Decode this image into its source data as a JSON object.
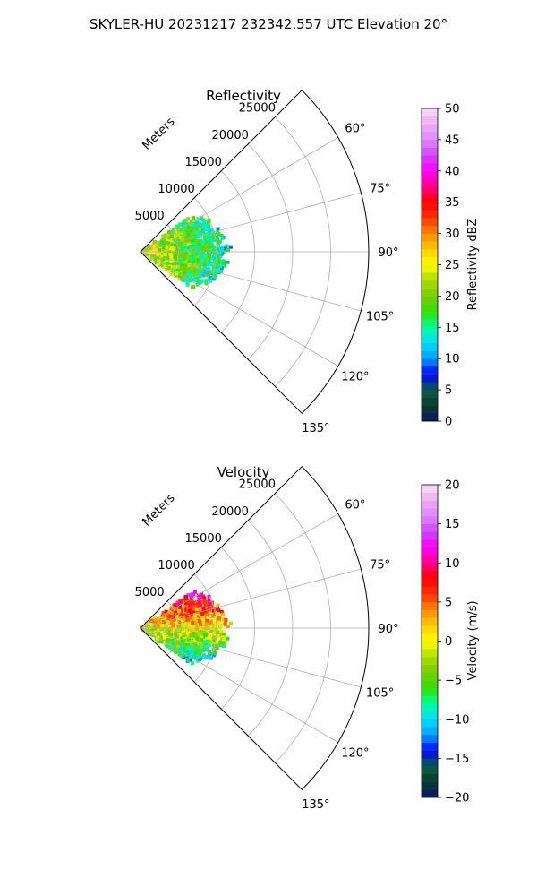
{
  "figure": {
    "suptitle": "SKYLER-HU  20231217  232342.557 UTC Elevation 20°"
  },
  "chart_data": [
    {
      "type": "heatmap",
      "title": "Reflectivity",
      "range_axis_label": "Meters",
      "range_ticks": [
        5000,
        10000,
        15000,
        20000,
        25000
      ],
      "range_tick_labels": [
        "5000",
        "10000",
        "15000",
        "20000",
        "25000"
      ],
      "range_max": 30000,
      "azimuth_range_deg": [
        45,
        135
      ],
      "azimuth_ticks": [
        60,
        75,
        90,
        105,
        120,
        135
      ],
      "azimuth_tick_labels": [
        "60°",
        "75°",
        "90°",
        "105°",
        "120°",
        "135°"
      ],
      "grid": true,
      "colorbar": {
        "label": "Reflectivity dBZ",
        "min": 0,
        "max": 50,
        "ticks": [
          0,
          5,
          10,
          15,
          20,
          25,
          30,
          35,
          40,
          45,
          50
        ],
        "tick_labels": [
          "0",
          "5",
          "10",
          "15",
          "20",
          "25",
          "30",
          "35",
          "40",
          "45",
          "50"
        ],
        "stops": [
          "#0c1464",
          "#0a3a2a",
          "#0a5f45",
          "#0000ff",
          "#00a0ff",
          "#00e0ff",
          "#00ff99",
          "#33dd00",
          "#77cc00",
          "#aadd00",
          "#ffff00",
          "#ffcc00",
          "#ff8800",
          "#ff3300",
          "#ff0000",
          "#ff0088",
          "#ff00ff",
          "#cc44ff",
          "#dd88ff",
          "#eeaaee",
          "#f8e0f8"
        ]
      },
      "field": {
        "center_az_deg": 90,
        "az_extent_deg": [
          55,
          125
        ],
        "max_range_m": 12000,
        "value_near": 25,
        "value_far": 13
      }
    },
    {
      "type": "heatmap",
      "title": "Velocity",
      "range_axis_label": "Meters",
      "range_ticks": [
        5000,
        10000,
        15000,
        20000,
        25000
      ],
      "range_tick_labels": [
        "5000",
        "10000",
        "15000",
        "20000",
        "25000"
      ],
      "range_max": 30000,
      "azimuth_range_deg": [
        45,
        135
      ],
      "azimuth_ticks": [
        60,
        75,
        90,
        105,
        120,
        135
      ],
      "azimuth_tick_labels": [
        "60°",
        "75°",
        "90°",
        "105°",
        "120°",
        "135°"
      ],
      "grid": true,
      "colorbar": {
        "label": "Velocity (m/s)",
        "min": -20,
        "max": 20,
        "ticks": [
          -20,
          -15,
          -10,
          -5,
          0,
          5,
          10,
          15,
          20
        ],
        "tick_labels": [
          "−20",
          "−15",
          "−10",
          "−5",
          "0",
          "5",
          "10",
          "15",
          "20"
        ],
        "stops": [
          "#0c1464",
          "#0a3a2a",
          "#0a5f45",
          "#0000ff",
          "#00a0ff",
          "#00e0ff",
          "#00ff99",
          "#33dd00",
          "#77cc00",
          "#aadd00",
          "#ffff00",
          "#ffcc00",
          "#ff8800",
          "#ff3300",
          "#ff0000",
          "#ff0088",
          "#ff00ff",
          "#cc44ff",
          "#dd88ff",
          "#eeaaee",
          "#f8e0f8"
        ]
      },
      "field": {
        "center_az_deg": 90,
        "az_extent_deg": [
          55,
          125
        ],
        "max_range_m": 12000,
        "value_near": 0,
        "value_far": 12
      }
    }
  ]
}
